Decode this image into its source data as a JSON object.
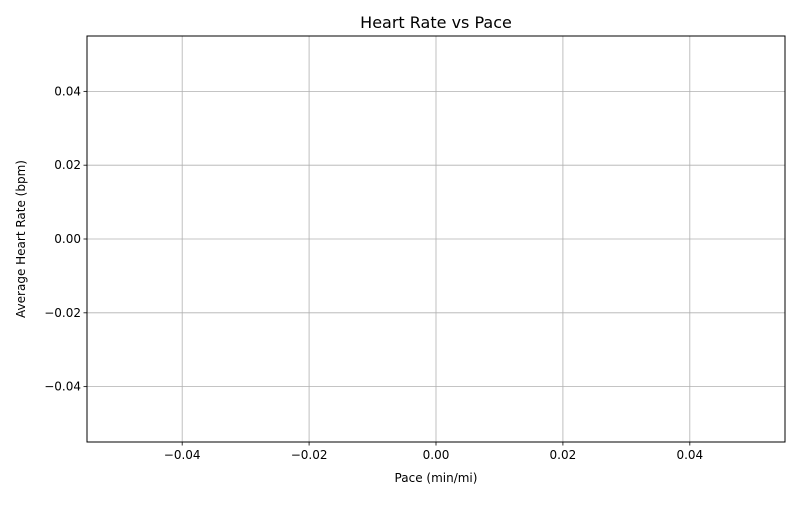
{
  "chart_data": {
    "type": "scatter",
    "title": "Heart Rate vs Pace",
    "xlabel": "Pace (min/mi)",
    "ylabel": "Average Heart Rate (bpm)",
    "x": [],
    "y": [],
    "xlim": [
      -0.055,
      0.055
    ],
    "ylim": [
      -0.055,
      0.055
    ],
    "xticks": [
      -0.04,
      -0.02,
      0.0,
      0.02,
      0.04
    ],
    "yticks": [
      -0.04,
      -0.02,
      0.0,
      0.02,
      0.04
    ],
    "xtick_labels": [
      "−0.04",
      "−0.02",
      "0.00",
      "0.02",
      "0.04"
    ],
    "ytick_labels": [
      "−0.04",
      "−0.02",
      "0.00",
      "0.02",
      "0.04"
    ],
    "grid": true,
    "legend": "none",
    "colors": {
      "grid": "#b0b0b0",
      "axes": "#000000",
      "background": "#ffffff"
    }
  }
}
